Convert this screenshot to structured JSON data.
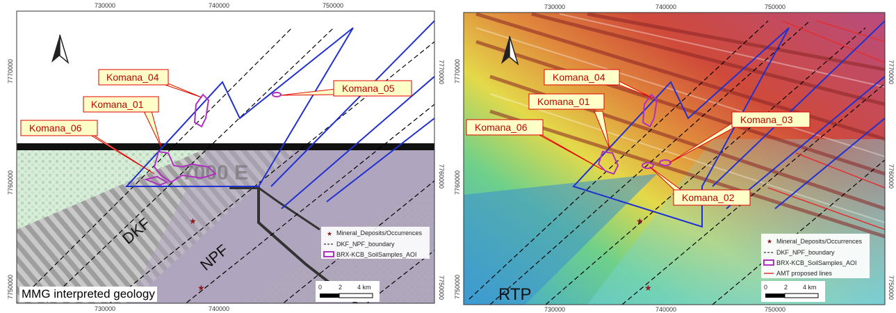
{
  "left_panel": {
    "title": "MMG interpreted geology",
    "top_ticks": [
      "730000",
      "740000",
      "750000"
    ],
    "bottom_ticks": [
      "730000",
      "740000"
    ],
    "left_ticks": [
      "7770000",
      "7760000",
      "7750000"
    ],
    "right_ticks": [
      "7770000",
      "7760000",
      "7750000"
    ],
    "callouts": [
      "Komana_04",
      "Komana_01",
      "Komana_05",
      "Komana_06"
    ],
    "unit_labels": [
      "DKF",
      "NPF"
    ],
    "faded_label": "7000 E",
    "legend": [
      "Mineral_Deposits/Occurrences",
      "DKF_NPF_boundary",
      "BRX-KCB_SoilSamples_AOI"
    ],
    "scale": [
      "0",
      "2",
      "4 km"
    ],
    "north_arrow_icon": "north-arrow-icon"
  },
  "right_panel": {
    "title": "RTP",
    "top_ticks": [
      "730000",
      "740000",
      "750000"
    ],
    "bottom_ticks": [
      "730000",
      "740000",
      "750000"
    ],
    "left_ticks": [
      "7770000",
      "7760000",
      "7750000"
    ],
    "right_ticks": [
      "7770000",
      "7760000",
      "7750000"
    ],
    "callouts": [
      "Komana_04",
      "Komana_01",
      "Komana_06",
      "Komana_03",
      "Komana_02"
    ],
    "legend": [
      "Mineral_Deposits/Occurrences",
      "DKF_NPF_boundary",
      "BRX-KCB_SoilSamples_AOI",
      "AMT proposed lines"
    ],
    "scale": [
      "0",
      "2",
      "4 km"
    ],
    "north_arrow_icon": "north-arrow-icon"
  },
  "colors": {
    "callout_fill": "#ffffc8",
    "callout_border": "#e00000",
    "aoi_outline": "#b030c0",
    "structure_line": "#2030d0",
    "amt_line": "#e03030",
    "deposit_star": "#8b1a1a"
  }
}
